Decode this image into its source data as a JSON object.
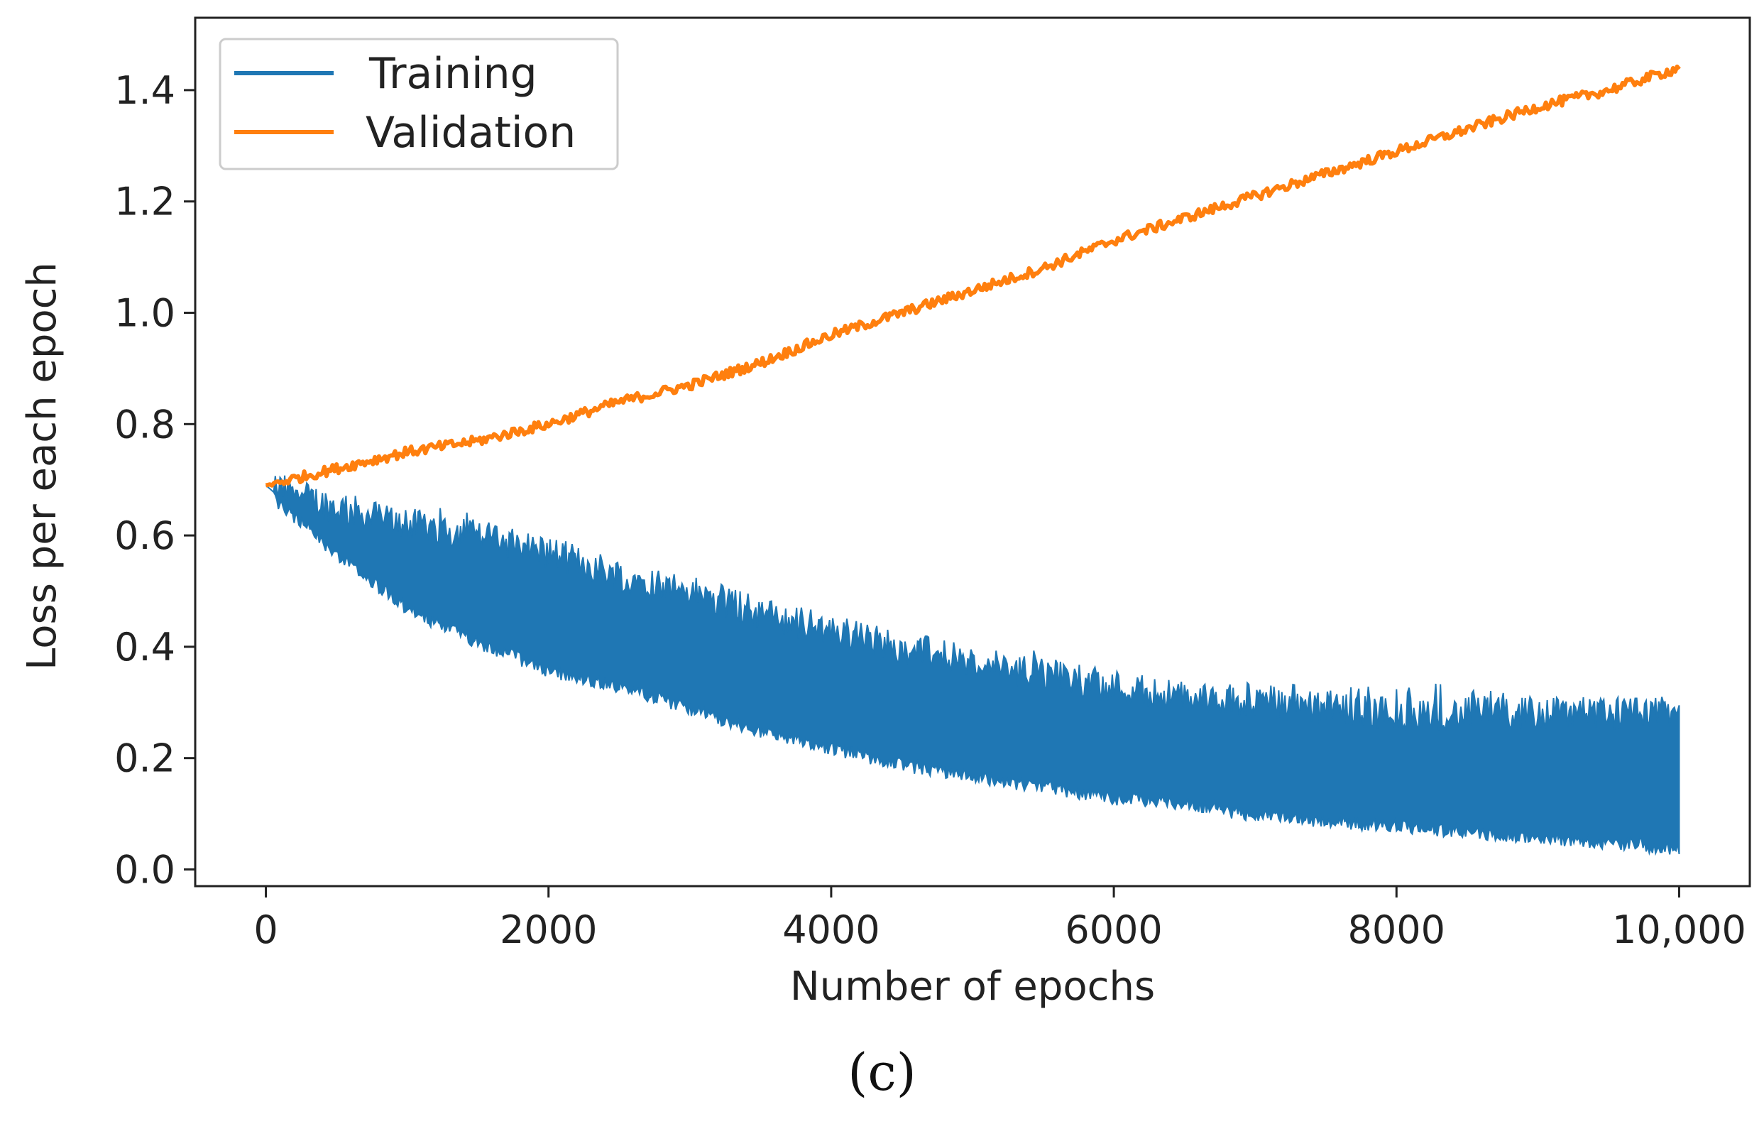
{
  "chart_data": {
    "type": "line",
    "title": "",
    "xlabel": "Number of epochs",
    "ylabel": "Loss per each epoch",
    "xlim": [
      -500,
      10500
    ],
    "ylim": [
      -0.03,
      1.53
    ],
    "x_ticks": [
      0,
      2000,
      4000,
      6000,
      8000,
      10000
    ],
    "x_tick_labels": [
      "0",
      "2000",
      "4000",
      "6000",
      "8000",
      "10,000"
    ],
    "y_ticks": [
      0.0,
      0.2,
      0.4,
      0.6,
      0.8,
      1.0,
      1.2,
      1.4
    ],
    "y_tick_labels": [
      "0.0",
      "0.2",
      "0.4",
      "0.6",
      "0.8",
      "1.0",
      "1.2",
      "1.4"
    ],
    "grid": false,
    "legend_position": "top-left",
    "series": [
      {
        "name": "Training",
        "color": "#1f77b4",
        "style": "noisy band",
        "x": [
          0,
          500,
          1000,
          1500,
          2000,
          2500,
          3000,
          3500,
          4000,
          4500,
          5000,
          5500,
          6000,
          6500,
          7000,
          7500,
          8000,
          8500,
          9000,
          9500,
          10000
        ],
        "lower": [
          0.69,
          0.58,
          0.48,
          0.42,
          0.37,
          0.34,
          0.3,
          0.26,
          0.23,
          0.2,
          0.18,
          0.16,
          0.14,
          0.13,
          0.11,
          0.1,
          0.09,
          0.08,
          0.07,
          0.06,
          0.05
        ],
        "upper": [
          0.69,
          0.65,
          0.62,
          0.6,
          0.57,
          0.53,
          0.5,
          0.46,
          0.43,
          0.4,
          0.37,
          0.35,
          0.33,
          0.31,
          0.3,
          0.29,
          0.28,
          0.28,
          0.28,
          0.28,
          0.28
        ],
        "peak_max": [
          0.69,
          0.68,
          0.66,
          0.64,
          0.56,
          0.52,
          0.52,
          0.46,
          0.45,
          0.41,
          0.36,
          0.4,
          0.33,
          0.32,
          0.34,
          0.33,
          0.34,
          0.33,
          0.31,
          0.31,
          0.31
        ]
      },
      {
        "name": "Validation",
        "color": "#ff7f0e",
        "style": "line",
        "x": [
          0,
          500,
          1000,
          1500,
          2000,
          2500,
          3000,
          3500,
          4000,
          4500,
          5000,
          5500,
          6000,
          6500,
          7000,
          7500,
          8000,
          8500,
          9000,
          9500,
          10000
        ],
        "values": [
          0.69,
          0.72,
          0.75,
          0.77,
          0.8,
          0.84,
          0.87,
          0.91,
          0.96,
          1.0,
          1.04,
          1.08,
          1.13,
          1.17,
          1.21,
          1.25,
          1.29,
          1.33,
          1.37,
          1.4,
          1.44
        ]
      }
    ]
  },
  "panel_label": "(c)"
}
